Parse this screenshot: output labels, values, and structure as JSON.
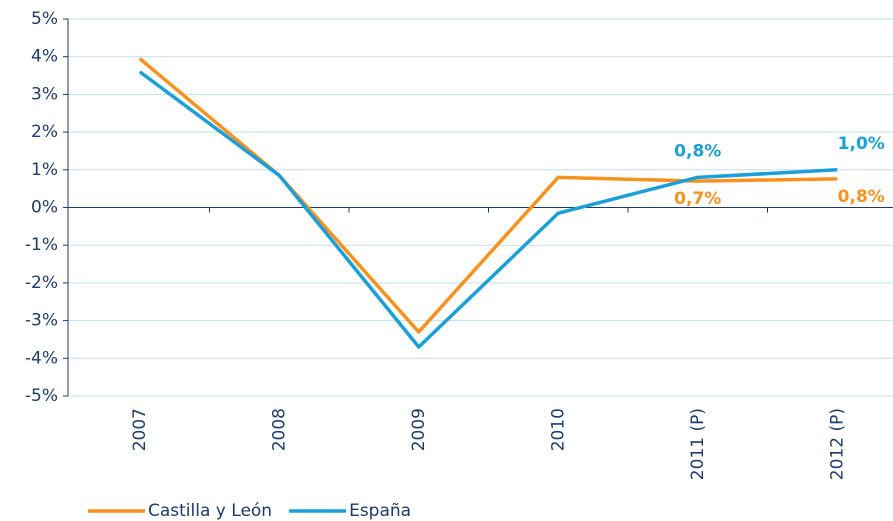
{
  "chart_data": {
    "type": "line",
    "categories": [
      "2007",
      "2008",
      "2009",
      "2010",
      "2011 (P)",
      "2012 (P)"
    ],
    "series": [
      {
        "name": "Castilla y León",
        "color": "#f7921e",
        "values": [
          3.95,
          0.85,
          -3.3,
          0.8,
          0.7,
          0.76
        ],
        "value_labels": [
          null,
          null,
          null,
          null,
          "0,7%",
          "0,8%"
        ]
      },
      {
        "name": "España",
        "color": "#1a9fd9",
        "values": [
          3.6,
          0.85,
          -3.7,
          -0.15,
          0.8,
          1.0
        ],
        "value_labels": [
          null,
          null,
          null,
          null,
          "0,8%",
          "1,0%"
        ]
      }
    ],
    "ylim": [
      -5,
      5
    ],
    "yticks": [
      {
        "value": 5,
        "label": "5%"
      },
      {
        "value": 4,
        "label": "4%"
      },
      {
        "value": 3,
        "label": "3%"
      },
      {
        "value": 2,
        "label": "2%"
      },
      {
        "value": 1,
        "label": "1%"
      },
      {
        "value": 0,
        "label": "0%"
      },
      {
        "value": -1,
        "label": "-1%"
      },
      {
        "value": -2,
        "label": "-2%"
      },
      {
        "value": -3,
        "label": "-3%"
      },
      {
        "value": -4,
        "label": "-4%"
      },
      {
        "value": -5,
        "label": "-5%"
      }
    ],
    "grid": true
  }
}
